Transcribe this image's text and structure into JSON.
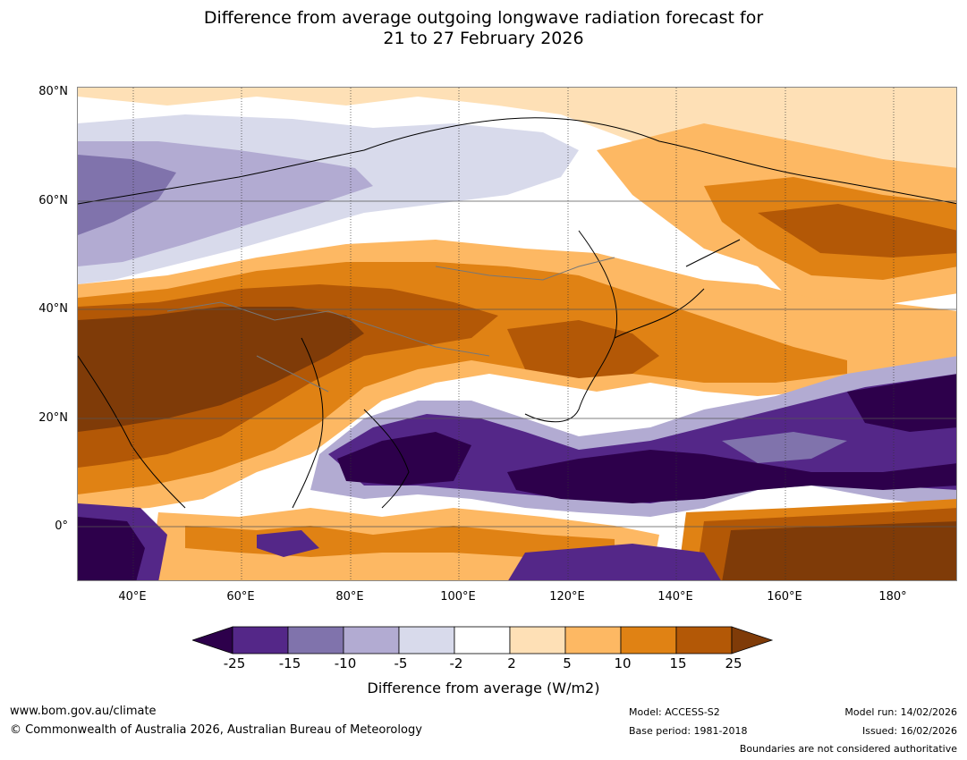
{
  "title_line1": "Difference from average outgoing longwave radiation forecast for",
  "title_line2": "21 to 27 February 2026",
  "lat_labels": [
    "80°N",
    "60°N",
    "40°N",
    "20°N",
    "0°"
  ],
  "lon_labels": [
    "40°E",
    "60°E",
    "80°E",
    "100°E",
    "120°E",
    "140°E",
    "160°E",
    "180°"
  ],
  "colorbar": {
    "ticks": [
      "-25",
      "-15",
      "-10",
      "-5",
      "-2",
      "2",
      "5",
      "10",
      "15",
      "25"
    ],
    "colors": [
      "#2d004b",
      "#542788",
      "#8073ac",
      "#b2abd2",
      "#d8daeb",
      "#ffffff",
      "#fee0b6",
      "#fdb863",
      "#e08214",
      "#b35806",
      "#7f3b08"
    ],
    "title": "Difference from average (W/m2)"
  },
  "footer": {
    "website": "www.bom.gov.au/climate",
    "copyright": "© Commonwealth of Australia 2026, Australian Bureau of Meteorology",
    "model": "Model: ACCESS-S2",
    "base_period": "Base period: 1981-2018",
    "model_run": "Model run: 14/02/2026",
    "issued": "Issued: 16/02/2026",
    "disclaimer": "Boundaries are not considered authoritative"
  }
}
